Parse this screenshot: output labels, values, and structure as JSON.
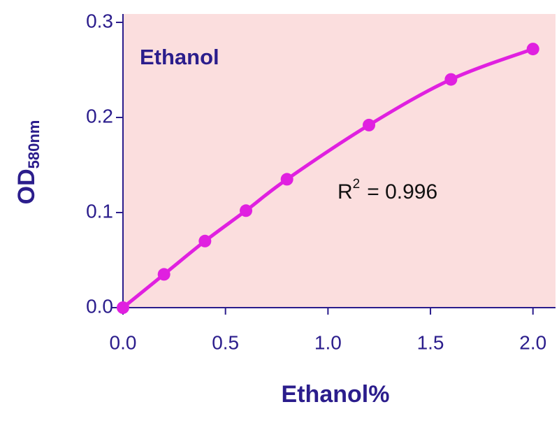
{
  "chart_data": {
    "type": "scatter",
    "title": "Ethanol",
    "xlabel": "Ethanol%",
    "ylabel": "OD",
    "ylabel_sub": "580nm",
    "annotation": {
      "base": "R",
      "sup": "2",
      "text": "= 0.996"
    },
    "x": [
      0,
      0.2,
      0.4,
      0.6,
      0.8,
      1.2,
      1.6,
      2.0
    ],
    "values": [
      0,
      0.035,
      0.07,
      0.102,
      0.135,
      0.192,
      0.24,
      0.272
    ],
    "color": "#e020e0",
    "background": "#fbdede",
    "xlim": [
      0,
      2.11
    ],
    "ylim": [
      0,
      0.3
    ],
    "xticks": [
      {
        "value": 0,
        "label": "0.0"
      },
      0.5,
      {
        "value": 1,
        "label": "1.0"
      },
      1.5,
      {
        "value": 2,
        "label": "2.0"
      }
    ],
    "yticks": [
      {
        "value": 0,
        "label": "0.0"
      },
      0.1,
      0.2,
      0.3
    ]
  }
}
